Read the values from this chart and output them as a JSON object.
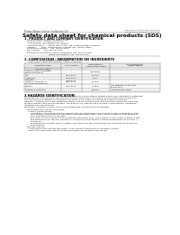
{
  "bg_color": "#ffffff",
  "header_left": "Product Name: Lithium Ion Battery Cell",
  "header_right": "Document Control: SDS-LIB-00010\nEstablished / Revision: Dec.7.2016",
  "title": "Safety data sheet for chemical products (SDS)",
  "section1_title": "1. PRODUCT AND COMPANY IDENTIFICATION",
  "section1_lines": [
    "  · Product name: Lithium Ion Battery Cell",
    "  · Product code: Cylindrical type cell",
    "       SIV 18650U, SIV 18650L, SIV 18650A",
    "  · Company name:     Sanyo Electric Co., Ltd., Mobile Energy Company",
    "  · Address:       2001, Kamishinden, Sumoto City, Hyogo, Japan",
    "  · Telephone number:   +81-799-26-4111",
    "  · Fax number:    +81-799-26-4129",
    "  · Emergency telephone number (Weekday) +81-799-26-3962",
    "                                    (Night and holiday) +81-799-26-4131"
  ],
  "section2_title": "2. COMPOSITION / INFORMATION ON INGREDIENTS",
  "section2_subtitle": "  · Substance or preparation: Preparation",
  "section2_sub2": "    · Information about the chemical nature of product:",
  "table_col_names": [
    "Chemical name",
    "CAS number",
    "Concentration /\nConcentration range",
    "Classification and\nhazard labeling"
  ],
  "table_col_name2": "Several name",
  "table_rows": [
    [
      "Lithium nickel cobaltate",
      "-",
      "(30-60%)",
      ""
    ],
    [
      "(LiNiαCoβMnOγ2)",
      "",
      "",
      ""
    ],
    [
      "Iron",
      "7439-89-6",
      "15-25%",
      "-"
    ],
    [
      "Aluminum",
      "7429-90-5",
      "2-6%",
      "-"
    ],
    [
      "Graphite",
      "",
      "10-25%",
      "-"
    ],
    [
      "(Ratio in graphite-1)",
      "7782-42-5",
      "",
      ""
    ],
    [
      "(All Ratio graphite-1)",
      "7782-44-7",
      "",
      ""
    ],
    [
      "Copper",
      "7440-50-8",
      "5-15%",
      "Sensitization of the skin\ngroup No.2"
    ],
    [
      "Organic electrolyte",
      "-",
      "10-25%",
      "Inflammable liquid"
    ]
  ],
  "section3_title": "3 HAZARDS IDENTIFICATION",
  "section3_body": [
    "For the battery cell, chemical materials are stored in a hermetically sealed metal case, designed to withstand",
    "temperatures and pressures encountered during normal use. As a result, during normal use, there is no",
    "physical danger of ignition or explosion and there is no danger of hazardous materials leakage.",
    "However, if exposed to a fire added mechanical shocks, decomposed, armed alarms whose my case was,",
    "the gas release vent can be operated. The battery cell case will be breached of fire-persons, hazardous",
    "materials may be released.",
    "Moreover, if heated strongly by the surrounding fire, soot gas may be emitted."
  ],
  "section3_bullet1_title": "  · Most important hazard and effects:",
  "section3_bullet1_lines": [
    "      Human health effects:",
    "         Inhalation: The release of the electrolyte has an anesthesia action and stimulates a respiratory tract.",
    "         Skin contact: The release of the electrolyte stimulates a skin. The electrolyte skin contact causes a",
    "         sore and stimulation on the skin.",
    "         Eye contact: The release of the electrolyte stimulates eyes. The electrolyte eye contact causes a sore",
    "         and stimulation on the eye. Especially, a substance that causes a strong inflammation of the eye is",
    "         contained.",
    "         Environmental effects: Since a battery cell remains in the environment, do not throw out it into the",
    "         environment."
  ],
  "section3_bullet2_title": "  · Specific hazards:",
  "section3_bullet2_lines": [
    "      If the electrolyte contacts with water, it will generate detrimental hydrogen fluoride.",
    "      Since the lead electrolyte is inflammable liquid, do not bring close to fire."
  ]
}
